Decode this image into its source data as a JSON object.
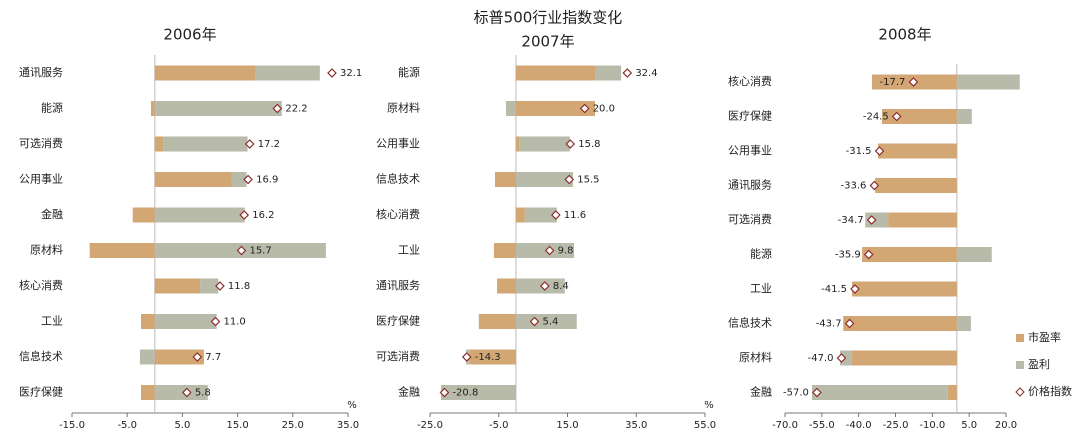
{
  "title": "标普500行业指数变化",
  "chart_data": [
    {
      "type": "bar",
      "orientation": "horizontal",
      "title": "2006年",
      "xlabel": "%",
      "categories": [
        "通讯服务",
        "能源",
        "可选消费",
        "公用事业",
        "金融",
        "原材料",
        "核心消费",
        "工业",
        "信息技术",
        "医疗保健"
      ],
      "series": [
        {
          "color": "#d3a774",
          "values": [
            18.3,
            -0.7,
            1.6,
            13.9,
            -4.0,
            -11.8,
            8.2,
            -2.5,
            8.9,
            -2.5
          ]
        },
        {
          "color": "#b9bbaa",
          "values": [
            11.6,
            23.0,
            15.2,
            2.7,
            16.3,
            31.0,
            3.3,
            11.2,
            -2.7,
            9.6
          ]
        },
        {
          "marker": "diamond",
          "color": "#8b2b2b",
          "values": [
            32.1,
            22.2,
            17.2,
            16.9,
            16.2,
            15.7,
            11.8,
            11.0,
            7.7,
            5.8
          ],
          "value_labels": [
            "32.1",
            "22.2",
            "17.2",
            "16.9",
            "16.2",
            "15.7",
            "11.8",
            "11.0",
            "7.7",
            "5.8"
          ]
        }
      ],
      "xlim": [
        -15,
        35
      ],
      "xticks": [
        {
          "value": -15,
          "label": "-15.0"
        },
        {
          "value": -5,
          "label": "-5.0"
        },
        {
          "value": 5,
          "label": "5.0"
        },
        {
          "value": 15,
          "label": "15.0"
        },
        {
          "value": 25,
          "label": "25.0"
        },
        {
          "value": 35,
          "label": "35.0"
        }
      ]
    },
    {
      "type": "bar",
      "orientation": "horizontal",
      "title": "2007年",
      "xlabel": "%",
      "categories": [
        "能源",
        "原材料",
        "公用事业",
        "信息技术",
        "核心消费",
        "工业",
        "通讯服务",
        "医疗保健",
        "可选消费",
        "金融"
      ],
      "series": [
        {
          "color": "#d3a774",
          "values": [
            23.0,
            23.0,
            0.9,
            -6.1,
            2.6,
            -6.4,
            -5.5,
            -10.8,
            -13.6,
            0
          ]
        },
        {
          "color": "#b9bbaa",
          "values": [
            7.6,
            -2.9,
            14.8,
            16.6,
            9.3,
            16.9,
            14.2,
            17.7,
            -0.9,
            -21.8
          ]
        },
        {
          "marker": "diamond",
          "color": "#8b2b2b",
          "values": [
            32.4,
            20.0,
            15.8,
            15.5,
            11.6,
            9.8,
            8.4,
            5.4,
            -14.3,
            -20.8
          ],
          "value_labels": [
            "32.4",
            "20.0",
            "15.8",
            "15.5",
            "11.6",
            "9.8",
            "8.4",
            "5.4",
            "-14.3",
            "-20.8"
          ]
        }
      ],
      "xlim": [
        -25,
        55
      ],
      "xticks": [
        {
          "value": -25,
          "label": "-25.0"
        },
        {
          "value": -5,
          "label": "-5.0"
        },
        {
          "value": 15,
          "label": "15.0"
        },
        {
          "value": 35,
          "label": "35.0"
        },
        {
          "value": 55,
          "label": "55.0"
        }
      ]
    },
    {
      "type": "bar",
      "orientation": "horizontal",
      "title": "2008年",
      "legend": "lower right",
      "categories": [
        "核心消费",
        "医疗保健",
        "公用事业",
        "通讯服务",
        "可选消费",
        "能源",
        "工业",
        "信息技术",
        "原材料",
        "金融"
      ],
      "series": [
        {
          "name": "市盈率",
          "color": "#d3a774",
          "values": [
            -34.6,
            -30.5,
            -32.1,
            -33.3,
            -28.0,
            -38.6,
            -42.7,
            -46.3,
            -42.7,
            -3.7
          ]
        },
        {
          "name": "盈利",
          "color": "#b9bbaa",
          "values": [
            25.6,
            6.1,
            0,
            0,
            -9.3,
            14.2,
            0,
            5.7,
            -4.9,
            -55.3
          ]
        },
        {
          "name": "价格指数",
          "marker": "diamond",
          "color": "#8b2b2b",
          "values": [
            -17.7,
            -24.5,
            -31.5,
            -33.6,
            -34.7,
            -35.9,
            -41.5,
            -43.7,
            -47.0,
            -57.0
          ],
          "value_labels": [
            "-17.7",
            "-24.5",
            "-31.5",
            "-33.6",
            "-34.7",
            "-35.9",
            "-41.5",
            "-43.7",
            "-47.0",
            "-57.0"
          ]
        }
      ],
      "xlim": [
        -70,
        20
      ],
      "xticks": [
        {
          "value": -70,
          "label": "-70.0"
        },
        {
          "value": -55,
          "label": "-55.0"
        },
        {
          "value": -40,
          "label": "-40.0"
        },
        {
          "value": -25,
          "label": "-25.0"
        },
        {
          "value": -10,
          "label": "-10.0"
        },
        {
          "value": 5,
          "label": "5.0"
        },
        {
          "value": 20,
          "label": "20.0"
        }
      ]
    }
  ]
}
